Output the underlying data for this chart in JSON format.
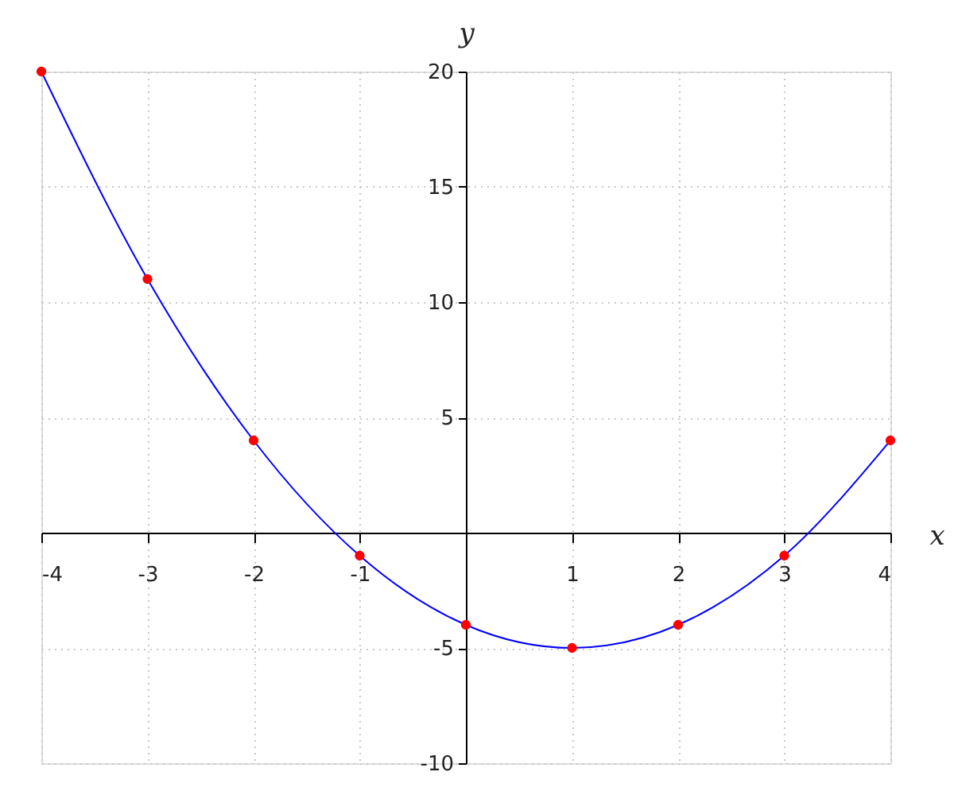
{
  "chart_data": {
    "type": "line",
    "x": [
      -4,
      -3,
      -2,
      -1,
      0,
      1,
      2,
      3,
      4
    ],
    "series": [
      {
        "color": "#0000ff",
        "line_style": "solid",
        "values": [
          20,
          11,
          4,
          -1,
          -4,
          -5,
          -4,
          -1,
          4
        ]
      },
      {
        "type": "scatter",
        "color": "#ff0000",
        "marker": "circle",
        "values": [
          20,
          11,
          4,
          -1,
          -4,
          -5,
          -4,
          -1,
          4
        ]
      }
    ],
    "xlabel": "x",
    "ylabel": "y",
    "xlim": [
      -4,
      4
    ],
    "ylim": [
      -10,
      20
    ],
    "xticks": [
      -4,
      -3,
      -2,
      -1,
      1,
      2,
      3,
      4
    ],
    "yticks": [
      -10,
      -5,
      5,
      10,
      15,
      20
    ],
    "grid": true
  }
}
